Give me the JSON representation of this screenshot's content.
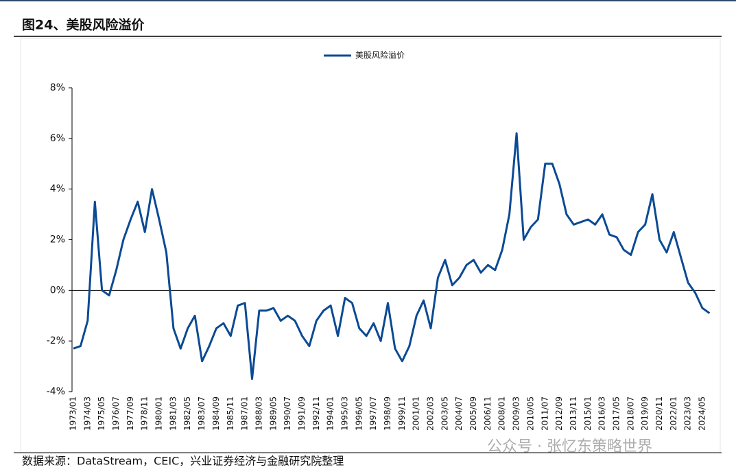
{
  "header": {
    "title": "图24、美股风险溢价"
  },
  "chart_data": {
    "type": "line",
    "categories": [
      "1973/01",
      null,
      "1974/03",
      null,
      "1975/05",
      null,
      "1976/07",
      null,
      "1977/09",
      null,
      "1978/11",
      null,
      "1980/01",
      null,
      "1981/03",
      null,
      "1982/05",
      null,
      "1983/07",
      null,
      "1984/09",
      null,
      "1985/11",
      null,
      "1987/01",
      null,
      "1988/03",
      null,
      "1989/05",
      null,
      "1990/07",
      null,
      "1991/09",
      null,
      "1992/11",
      null,
      "1994/01",
      null,
      "1995/03",
      null,
      "1996/05",
      null,
      "1997/07",
      null,
      "1998/09",
      null,
      "1999/11",
      null,
      "2001/01",
      null,
      "2002/03",
      null,
      "2003/05",
      null,
      "2004/07",
      null,
      "2005/09",
      null,
      "2006/11",
      null,
      "2008/01",
      null,
      "2009/03",
      null,
      "2010/05",
      null,
      "2011/07",
      null,
      "2012/09",
      null,
      "2013/11",
      null,
      "2015/01",
      null,
      "2016/03",
      null,
      "2017/05",
      null,
      "2018/07",
      null,
      "2019/09",
      null,
      "2020/11",
      null,
      "2022/01",
      null,
      "2023/03",
      null,
      "2024/05",
      null
    ],
    "series": [
      {
        "name": "美股风险溢价",
        "color": "#0b4a94",
        "values": [
          -2.3,
          -2.2,
          -1.2,
          3.5,
          0.0,
          -0.2,
          0.8,
          2.0,
          2.8,
          3.5,
          2.3,
          4.0,
          2.8,
          1.5,
          -1.5,
          -2.3,
          -1.5,
          -1.0,
          -2.8,
          -2.2,
          -1.5,
          -1.3,
          -1.8,
          -0.6,
          -0.5,
          -3.5,
          -0.8,
          -0.8,
          -0.7,
          -1.2,
          -1.0,
          -1.2,
          -1.8,
          -2.2,
          -1.2,
          -0.8,
          -0.6,
          -1.8,
          -0.3,
          -0.5,
          -1.5,
          -1.8,
          -1.3,
          -2.0,
          -0.5,
          -2.3,
          -2.8,
          -2.2,
          -1.0,
          -0.4,
          -1.5,
          0.5,
          1.2,
          0.2,
          0.5,
          1.0,
          1.2,
          0.7,
          1.0,
          0.8,
          1.6,
          3.0,
          6.2,
          2.0,
          2.5,
          2.8,
          5.0,
          5.0,
          4.2,
          3.0,
          2.6,
          2.7,
          2.8,
          2.6,
          3.0,
          2.2,
          2.1,
          1.6,
          1.4,
          2.3,
          2.6,
          3.8,
          2.0,
          1.5,
          2.3,
          1.3,
          0.3,
          -0.1,
          -0.7,
          -0.9
        ]
      }
    ],
    "ylim": [
      -4,
      8
    ],
    "yticks": [
      {
        "value": -4,
        "label": "-4%"
      },
      {
        "value": -2,
        "label": "-2%"
      },
      {
        "value": 0,
        "label": "0%"
      },
      {
        "value": 2,
        "label": "2%"
      },
      {
        "value": 4,
        "label": "4%"
      },
      {
        "value": 6,
        "label": "6%"
      },
      {
        "value": 8,
        "label": "8%"
      }
    ],
    "legend": "top"
  },
  "footer": {
    "source": "数据来源：DataStream，CEIC，兴业证券经济与金融研究院整理",
    "watermark": "公众号 · 张忆东策略世界"
  }
}
